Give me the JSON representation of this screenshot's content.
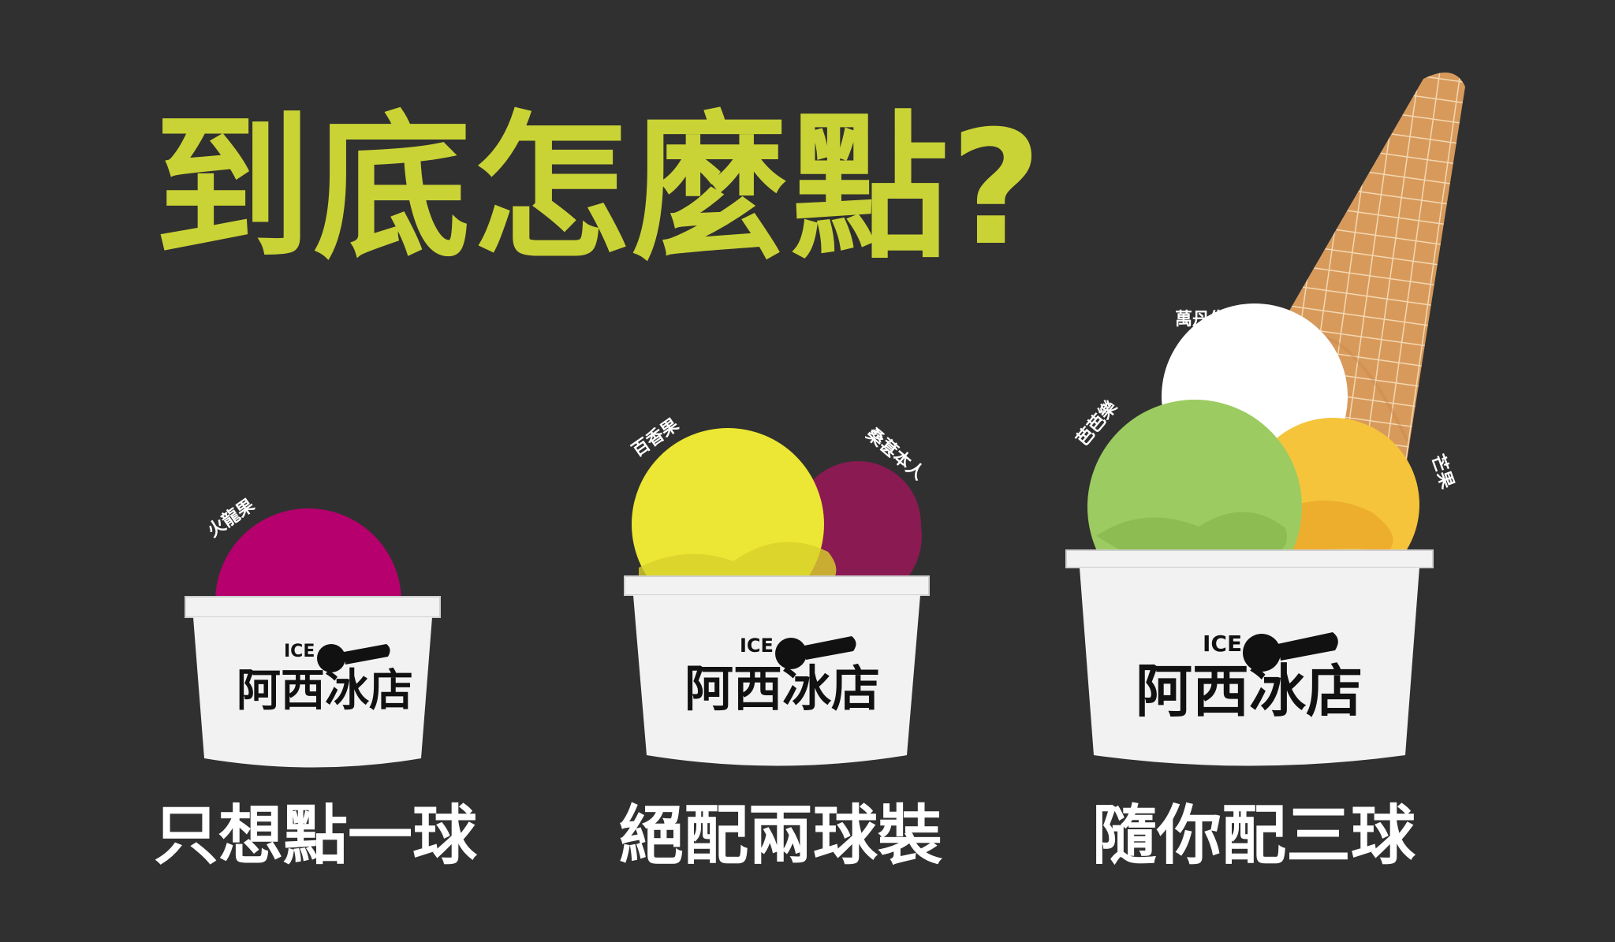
{
  "title": "到底怎麼點?",
  "brand": {
    "ice": "ICE",
    "name": "阿西冰店"
  },
  "options": [
    {
      "caption": "只想點一球",
      "flavors": [
        "火龍果"
      ]
    },
    {
      "caption": "絕配兩球裝",
      "flavors": [
        "百香果",
        "桑葚本人"
      ]
    },
    {
      "caption": "隨你配三球",
      "flavors": [
        "芭芭樂",
        "萬丹生乳",
        "芒果"
      ]
    }
  ],
  "colors": {
    "background": "#303030",
    "title": "#cad335",
    "dragon_fruit": "#b6006d",
    "passion_fruit": "#ece634",
    "mulberry": "#8a1a52",
    "guava": "#9ccb61",
    "raw_milk": "#ffffff",
    "mango": "#f5c43a",
    "cone": "#d89a5b",
    "cup": "#f2f2f2"
  }
}
